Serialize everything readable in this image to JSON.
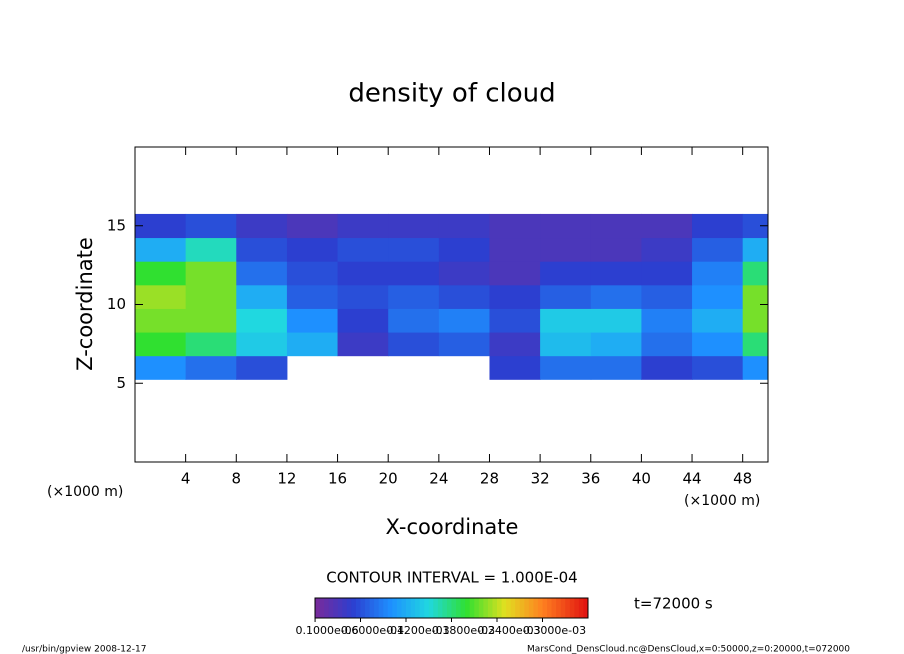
{
  "chart_data": {
    "type": "heatmap",
    "title": "density of cloud",
    "x_label": "X-coordinate",
    "y_label": "Z-coordinate",
    "x_unit_left": "(×1000 m)",
    "x_unit_right": "(×1000 m)",
    "contour_note": "CONTOUR INTERVAL = 1.000E-04",
    "time_note": "t=72000 s",
    "footer_left": "/usr/bin/gpview  2008-12-17",
    "footer_right": "MarsCond_DensCloud.nc@DensCloud,x=0:50000,z=0:20000,t=072000",
    "xlim": [
      0,
      50
    ],
    "ylim": [
      0,
      20
    ],
    "xticks": [
      4,
      8,
      12,
      16,
      20,
      24,
      28,
      32,
      36,
      40,
      44,
      48
    ],
    "yticks": [
      5,
      10,
      15
    ],
    "x": [
      2,
      6,
      10,
      14,
      18,
      22,
      26,
      30,
      34,
      38,
      42,
      46,
      50
    ],
    "z": [
      6,
      7.5,
      9,
      10.5,
      12,
      13.5,
      15
    ],
    "cell_width": 4,
    "cell_height": 1.5,
    "values": [
      [
        0.0001,
        8e-05,
        6e-05,
        null,
        null,
        null,
        null,
        5e-05,
        8e-05,
        8e-05,
        5e-05,
        6e-05,
        0.0001
      ],
      [
        0.0002,
        0.00018,
        0.00014,
        0.00012,
        4e-05,
        6e-05,
        7e-05,
        4e-05,
        0.00013,
        0.00012,
        8e-05,
        0.0001,
        0.00018
      ],
      [
        0.00022,
        0.00022,
        0.00015,
        0.0001,
        5e-05,
        8e-05,
        9e-05,
        6e-05,
        0.00014,
        0.00014,
        9e-05,
        0.00012,
        0.00022
      ],
      [
        0.00023,
        0.00022,
        0.00012,
        7e-05,
        6e-05,
        7e-05,
        6e-05,
        5e-05,
        7e-05,
        8e-05,
        7e-05,
        0.0001,
        0.00022
      ],
      [
        0.0002,
        0.00022,
        8e-05,
        6e-05,
        5e-05,
        5e-05,
        4e-05,
        3e-05,
        5e-05,
        5e-05,
        5e-05,
        9e-05,
        0.00018
      ],
      [
        0.00012,
        0.00016,
        6e-05,
        5e-05,
        6e-05,
        6e-05,
        5e-05,
        3e-05,
        3e-05,
        3e-05,
        4e-05,
        7e-05,
        0.00012
      ],
      [
        5e-05,
        6e-05,
        4e-05,
        3e-05,
        4e-05,
        4e-05,
        4e-05,
        3e-05,
        3e-05,
        3e-05,
        3e-05,
        5e-05,
        6e-05
      ]
    ],
    "clim": [
      0,
      0.00036
    ],
    "colormap": [
      {
        "value": 0,
        "color": "#7a2a9a"
      },
      {
        "value": 5e-05,
        "color": "#2c3fd0"
      },
      {
        "value": 0.0001,
        "color": "#1e90ff"
      },
      {
        "value": 0.00015,
        "color": "#20d8e0"
      },
      {
        "value": 0.0002,
        "color": "#30e030"
      },
      {
        "value": 0.00025,
        "color": "#e0e020"
      },
      {
        "value": 0.0003,
        "color": "#ff8020"
      },
      {
        "value": 0.00036,
        "color": "#e01010"
      }
    ],
    "colorbar_ticks": [
      {
        "value": 1e-07,
        "label": "0.1000e-06"
      },
      {
        "value": 6e-05,
        "label": "0.6000e-04"
      },
      {
        "value": 0.00012,
        "label": "0.1200e-03"
      },
      {
        "value": 0.00018,
        "label": "0.1800e-03"
      },
      {
        "value": 0.00024,
        "label": "0.2400e-03"
      },
      {
        "value": 0.0003,
        "label": "0.3000e-03"
      }
    ]
  }
}
